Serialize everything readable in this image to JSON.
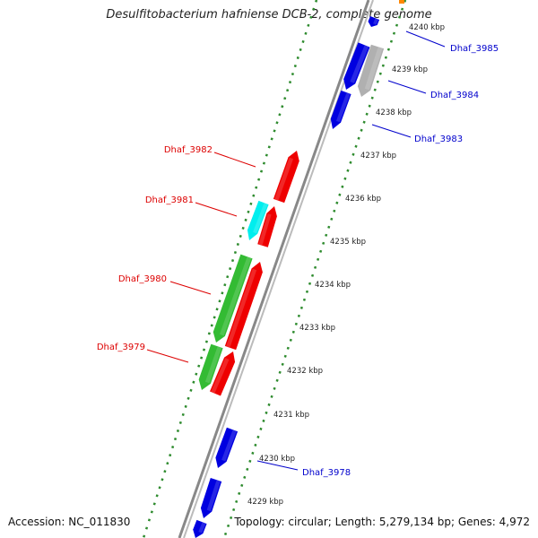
{
  "title": "Desulfitobacterium hafniense DCB-2, complete genome",
  "accession_text": "Accession: NC_011830",
  "summary_text": "Topology: circular; Length: 5,279,134 bp; Genes: 4,972",
  "colors": {
    "backbone": "#808080",
    "tick_dots": "#2e8b2e",
    "forward_label": "#0000cc",
    "reverse_label": "#dd0000",
    "gene_blue": "#0000e0",
    "gene_red": "#ee0000",
    "gene_green": "#33bb33",
    "gene_cyan": "#00eeee",
    "gene_gray": "#b0b0b0"
  },
  "scale_labels": [
    "4240 kbp",
    "4239 kbp",
    "4238 kbp",
    "4237 kbp",
    "4236 kbp",
    "4235 kbp",
    "4234 kbp",
    "4233 kbp",
    "4232 kbp",
    "4231 kbp",
    "4230 kbp",
    "4229 kbp"
  ],
  "forward_genes": [
    {
      "label": "Dhaf_3985",
      "color": "gene_blue"
    },
    {
      "label": "Dhaf_3984",
      "color": "gene_gray"
    },
    {
      "label": "Dhaf_3983",
      "color": "gene_blue"
    },
    {
      "label": "Dhaf_3978",
      "color": "gene_blue"
    }
  ],
  "reverse_genes": [
    {
      "label": "Dhaf_3982",
      "color": "gene_red"
    },
    {
      "label": "Dhaf_3981",
      "color": "gene_cyan"
    },
    {
      "label": "Dhaf_3980",
      "color": "gene_green"
    },
    {
      "label": "Dhaf_3979",
      "color": "gene_green"
    }
  ]
}
